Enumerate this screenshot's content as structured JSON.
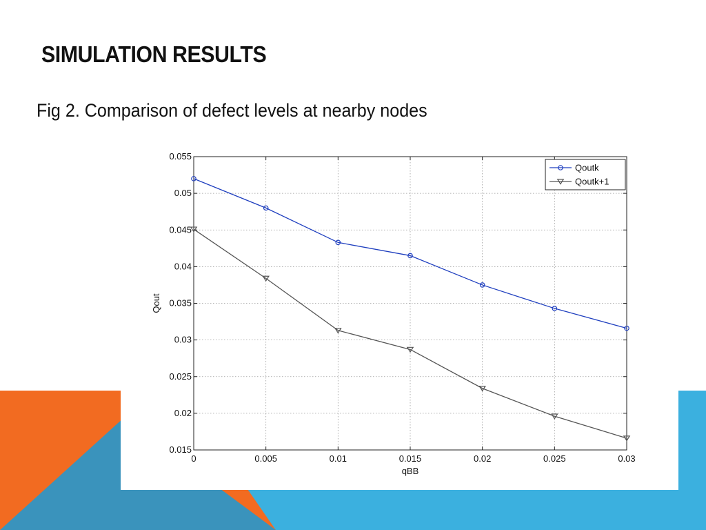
{
  "slide": {
    "title": "SIMULATION RESULTS",
    "caption": "Fig 2. Comparison of defect levels at nearby nodes"
  },
  "colors": {
    "orange_accent": "#F26B21",
    "blue_accent": "#3BB0DF",
    "blue_dark": "#3A93BC",
    "series_qoutk": "#1f3fbf",
    "series_qoutk1": "#555555"
  },
  "chart_data": {
    "type": "line",
    "title": "",
    "xlabel": "qBB",
    "ylabel": "Qout",
    "xlim": [
      0,
      0.03
    ],
    "ylim": [
      0.015,
      0.055
    ],
    "x_ticks": [
      "0",
      "0.005",
      "0.01",
      "0.015",
      "0.02",
      "0.025",
      "0.03"
    ],
    "y_ticks": [
      "0.015",
      "0.02",
      "0.025",
      "0.03",
      "0.035",
      "0.04",
      "0.045",
      "0.05",
      "0.055"
    ],
    "grid": true,
    "legend_position": "top-right",
    "x": [
      0,
      0.005,
      0.01,
      0.015,
      0.02,
      0.025,
      0.03
    ],
    "series": [
      {
        "name": "Qoutk",
        "marker": "circle",
        "color": "#1f3fbf",
        "values": [
          0.052,
          0.048,
          0.0433,
          0.0415,
          0.0375,
          0.0343,
          0.0316
        ]
      },
      {
        "name": "Qoutk+1",
        "marker": "triangle-down",
        "color": "#555555",
        "values": [
          0.0451,
          0.0384,
          0.0313,
          0.0287,
          0.0234,
          0.0196,
          0.0166
        ]
      }
    ]
  }
}
